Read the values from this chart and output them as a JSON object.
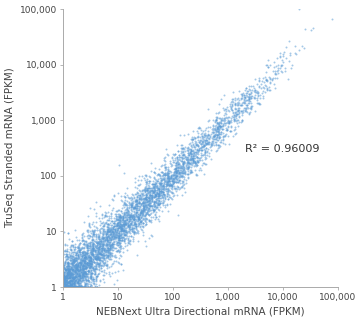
{
  "title": "",
  "xlabel": "NEBNext Ultra Directional mRNA (FPKM)",
  "ylabel": "TruSeq Stranded mRNA (FPKM)",
  "xlim": [
    1,
    100000
  ],
  "ylim": [
    1,
    100000
  ],
  "r2_text": "R² = 0.96009",
  "r2_x": 2000,
  "r2_y": 300,
  "dot_color": "#5B9BD5",
  "dot_alpha": 0.55,
  "dot_size": 2,
  "n_points": 5000,
  "seed": 42,
  "background_color": "#ffffff",
  "xlabel_fontsize": 7.5,
  "ylabel_fontsize": 7.5,
  "tick_fontsize": 6.5,
  "annotation_fontsize": 8
}
